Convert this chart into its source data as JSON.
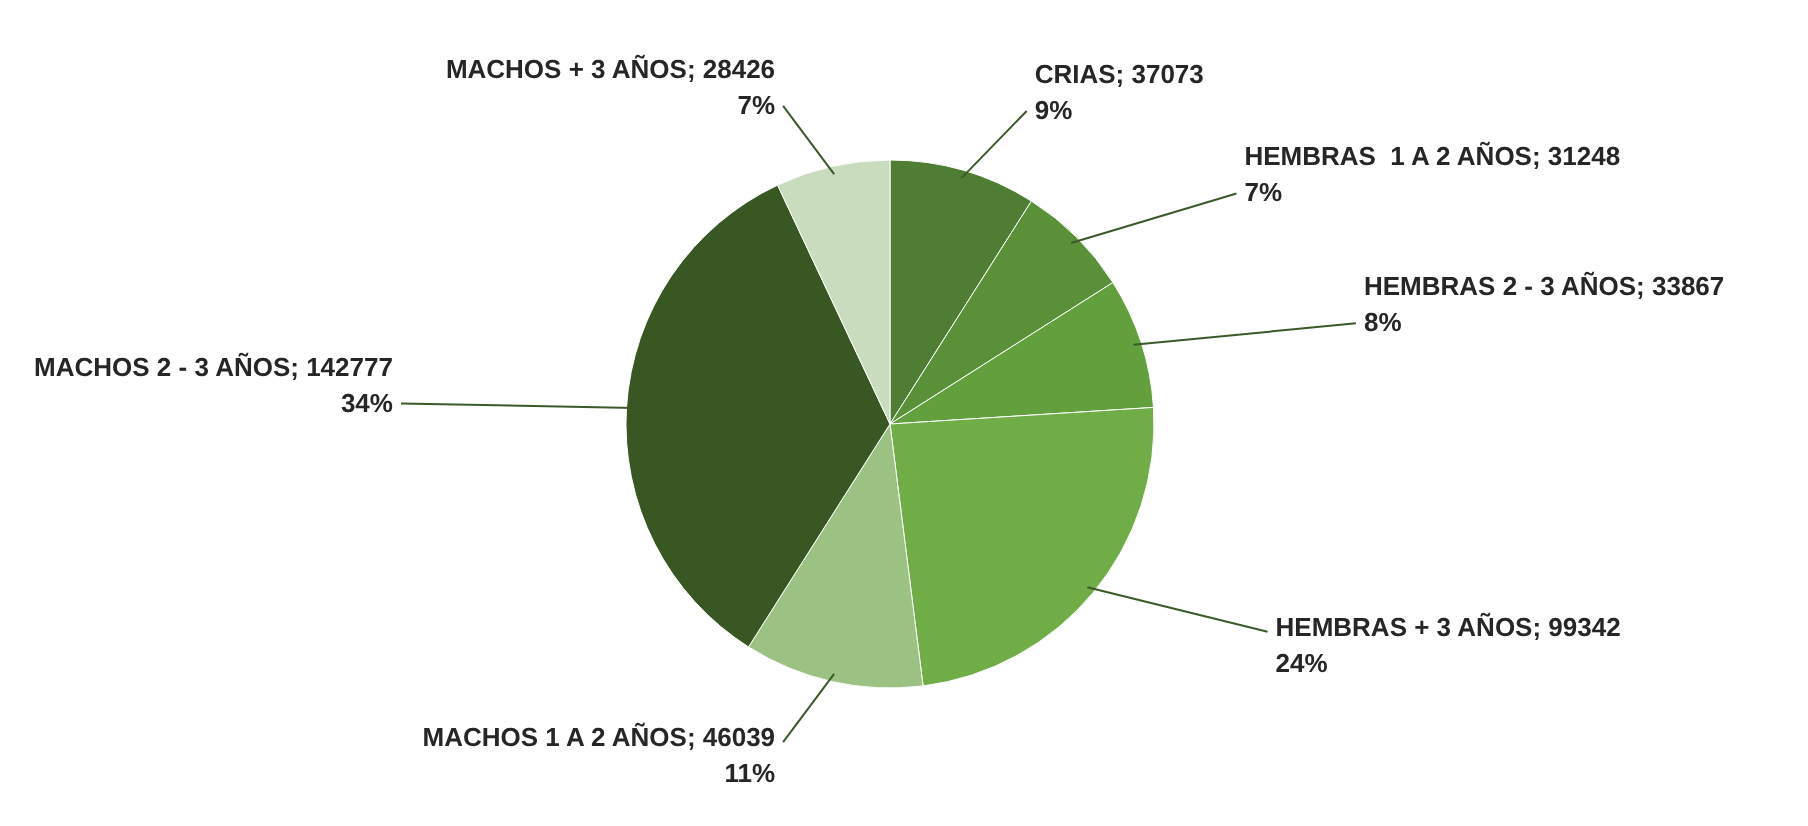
{
  "chart_data": {
    "type": "pie",
    "categories": [
      "CRIAS; 37073",
      "HEMBRAS  1 A 2 AÑOS; 31248",
      "HEMBRAS 2 - 3 AÑOS; 33867",
      "HEMBRAS + 3 AÑOS; 99342",
      "MACHOS 1 A 2 AÑOS; 46039",
      "MACHOS 2 - 3 AÑOS; 142777",
      "MACHOS + 3 AÑOS; 28426"
    ],
    "values": [
      9,
      7,
      8,
      24,
      11,
      34,
      7
    ],
    "colors": [
      "#4e7d33",
      "#5a9038",
      "#62a03e",
      "#70ad47",
      "#9bc282",
      "#385723",
      "#c9dcbd"
    ],
    "value_labels": [
      "9%",
      "7%",
      "8%",
      "24%",
      "11%",
      "34%",
      "7%"
    ]
  }
}
